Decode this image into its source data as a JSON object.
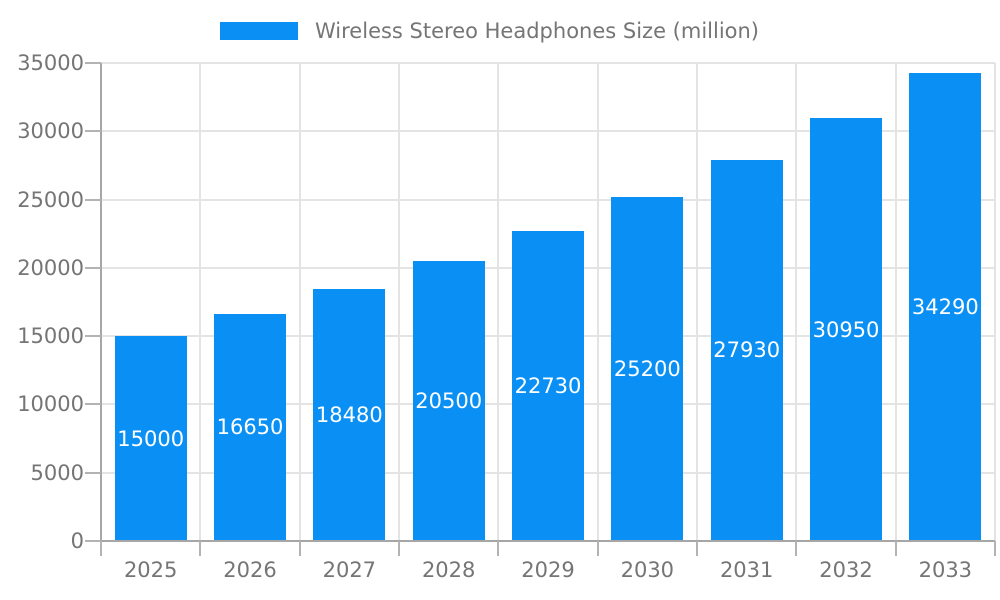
{
  "legend": {
    "label": "Wireless Stereo Headphones Size (million)"
  },
  "chart_data": {
    "type": "bar",
    "title": "Wireless Stereo Headphones Size (million)",
    "categories": [
      "2025",
      "2026",
      "2027",
      "2028",
      "2029",
      "2030",
      "2031",
      "2032",
      "2033"
    ],
    "values": [
      15000,
      16650,
      18480,
      20500,
      22730,
      25200,
      27930,
      30950,
      34290
    ],
    "series": [
      {
        "name": "Wireless Stereo Headphones Size (million)",
        "values": [
          15000,
          16650,
          18480,
          20500,
          22730,
          25200,
          27930,
          30950,
          34290
        ]
      }
    ],
    "xlabel": "",
    "ylabel": "",
    "ylim": [
      0,
      35000
    ],
    "yticks": [
      0,
      5000,
      10000,
      15000,
      20000,
      25000,
      30000,
      35000
    ],
    "ytick_interval": 5000,
    "bar_value_labels": [
      "15000",
      "16650",
      "18480",
      "20500",
      "22730",
      "25200",
      "27930",
      "30950",
      "34290"
    ],
    "legend_position": "top-center",
    "grid": "horizontal-and-vertical"
  },
  "style": {
    "bar_color": "#0a90f5",
    "grid_color": "#e4e4e4",
    "axis_color": "#a6a6a6",
    "tick_color": "#b3b3b3",
    "text_color": "#757575",
    "value_label_color": "#ffffff",
    "background_color": "#ffffff"
  }
}
